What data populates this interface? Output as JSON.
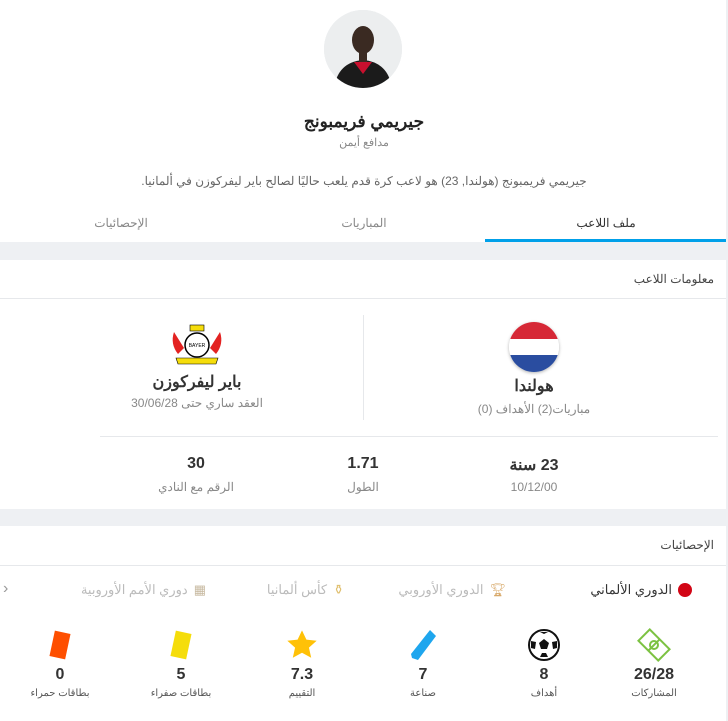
{
  "player": {
    "name": "جيريمي فريمبونج",
    "position": "مدافع أيمن",
    "description": "جيريمي فريمبونج (هولندا, 23) هو لاعب كرة قدم يلعب حاليًا لصالح باير ليفركوزن في ألمانيا."
  },
  "tabs": [
    {
      "label": "ملف اللاعب",
      "active": true
    },
    {
      "label": "المباريات"
    },
    {
      "label": "الإحصائيات"
    }
  ],
  "info": {
    "title": "معلومات اللاعب",
    "country": {
      "name": "هولندا",
      "sub": "مباريات(2) الأهداف (0)"
    },
    "club": {
      "name": "باير ليفركوزن",
      "sub": "العقد ساري حتى 30/06/28"
    },
    "age": {
      "value": "23 سنة",
      "label": "10/12/00"
    },
    "height": {
      "value": "1.71",
      "label": "الطول"
    },
    "number": {
      "value": "30",
      "label": "الرقم مع النادي"
    }
  },
  "stats": {
    "title": "الإحصائيات",
    "competitions": [
      {
        "label": "الدوري الألماني",
        "active": true
      },
      {
        "label": "الدوري الأوروبي"
      },
      {
        "label": "كأس ألمانيا"
      },
      {
        "label": "دوري الأمم الأوروبية"
      }
    ],
    "items": [
      {
        "value": "26/28",
        "label": "المشاركات",
        "icon": "pitch-icon"
      },
      {
        "value": "8",
        "label": "أهداف",
        "icon": "ball-icon"
      },
      {
        "value": "7",
        "label": "صناعة",
        "icon": "boot-icon"
      },
      {
        "value": "7.3",
        "label": "التقييم",
        "icon": "star-icon"
      },
      {
        "value": "5",
        "label": "بطاقات صفراء",
        "icon": "yellow-card-icon"
      },
      {
        "value": "0",
        "label": "بطاقات حمراء",
        "icon": "red-card-icon"
      }
    ]
  },
  "colors": {
    "accent": "#00a0e9",
    "yellow": "#f5dd0b",
    "red": "#fe4f00",
    "star": "#ffc107",
    "pitch": "#7cc242",
    "boot": "#1ea6ee"
  }
}
